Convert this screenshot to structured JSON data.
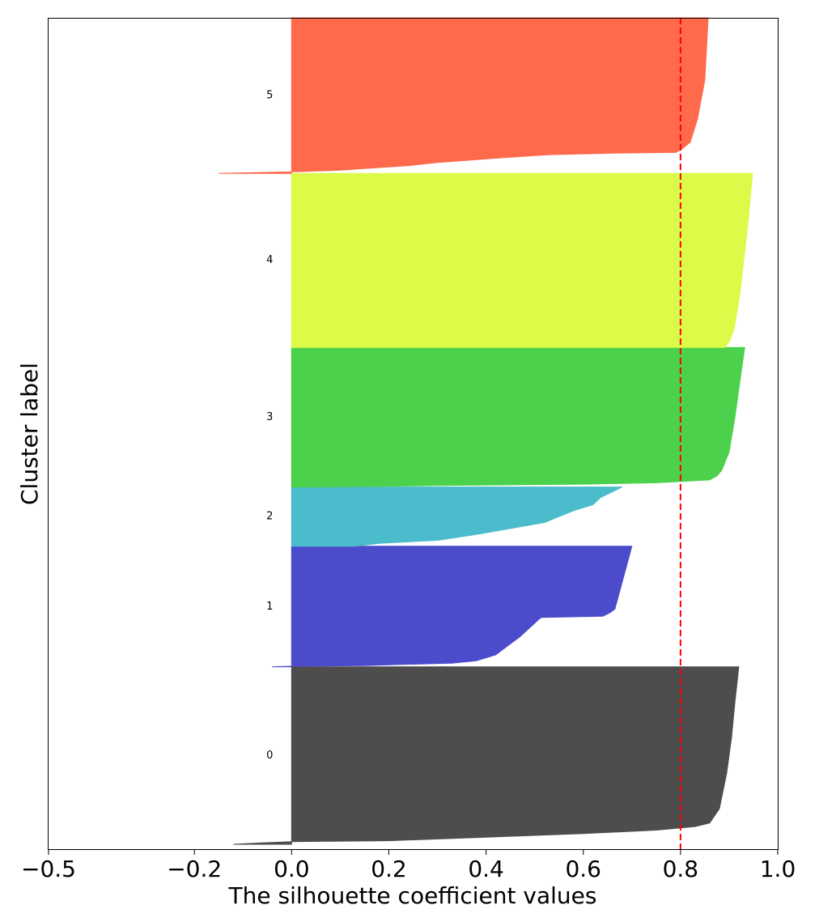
{
  "chart_data": {
    "type": "area",
    "xlabel": "The silhouette coefficient values",
    "ylabel": "Cluster label",
    "xlim": [
      -0.5,
      1.0
    ],
    "xticks": [
      -0.5,
      -0.2,
      0.0,
      0.2,
      0.4,
      0.6,
      0.8,
      1.0
    ],
    "xtick_labels": [
      "−0.5",
      "−0.2",
      "0.0",
      "0.2",
      "0.4",
      "0.6",
      "0.8",
      "1.0"
    ],
    "ylim": [
      0,
      1710
    ],
    "grid": false,
    "average_silhouette_score": 0.8,
    "reference_line": {
      "color": "#ff0000",
      "style": "dashed"
    },
    "clusters": [
      {
        "label": "0",
        "color": "#4d4d4d",
        "y_range": [
          10,
          375
        ],
        "profile": [
          [
            0,
            -0.12
          ],
          [
            0.008,
            -0.06
          ],
          [
            0.015,
            0.0
          ],
          [
            0.02,
            0.2
          ],
          [
            0.04,
            0.4
          ],
          [
            0.06,
            0.6
          ],
          [
            0.08,
            0.75
          ],
          [
            0.1,
            0.83
          ],
          [
            0.12,
            0.86
          ],
          [
            0.2,
            0.88
          ],
          [
            0.4,
            0.895
          ],
          [
            0.6,
            0.905
          ],
          [
            0.8,
            0.912
          ],
          [
            1.0,
            0.92
          ]
        ]
      },
      {
        "label": "1",
        "color": "#4b4bcc",
        "y_range": [
          375,
          623
        ],
        "profile": [
          [
            0,
            -0.04
          ],
          [
            0.005,
            0.0
          ],
          [
            0.01,
            0.15
          ],
          [
            0.02,
            0.23
          ],
          [
            0.03,
            0.33
          ],
          [
            0.05,
            0.38
          ],
          [
            0.1,
            0.42
          ],
          [
            0.25,
            0.47
          ],
          [
            0.4,
            0.51
          ],
          [
            0.41,
            0.515
          ],
          [
            0.42,
            0.64
          ],
          [
            0.45,
            0.655
          ],
          [
            0.48,
            0.665
          ],
          [
            1.0,
            0.7
          ]
        ]
      },
      {
        "label": "2",
        "color": "#4bbccc",
        "y_range": [
          623,
          745
        ],
        "profile": [
          [
            0,
            0.13
          ],
          [
            0.05,
            0.18
          ],
          [
            0.1,
            0.3
          ],
          [
            0.2,
            0.38
          ],
          [
            0.3,
            0.45
          ],
          [
            0.4,
            0.52
          ],
          [
            0.5,
            0.55
          ],
          [
            0.6,
            0.58
          ],
          [
            0.7,
            0.62
          ],
          [
            0.82,
            0.635
          ],
          [
            0.88,
            0.65
          ],
          [
            1.0,
            0.68
          ]
        ]
      },
      {
        "label": "3",
        "color": "#4bd14b",
        "y_range": [
          745,
          1032
        ],
        "profile": [
          [
            0,
            0.06
          ],
          [
            0.01,
            0.3
          ],
          [
            0.02,
            0.6
          ],
          [
            0.03,
            0.75
          ],
          [
            0.05,
            0.86
          ],
          [
            0.08,
            0.875
          ],
          [
            0.12,
            0.885
          ],
          [
            0.25,
            0.9
          ],
          [
            0.5,
            0.912
          ],
          [
            0.75,
            0.922
          ],
          [
            1.0,
            0.932
          ]
        ]
      },
      {
        "label": "4",
        "color": "#dcfb48",
        "y_range": [
          1032,
          1390
        ],
        "profile": [
          [
            0,
            0.89
          ],
          [
            0.03,
            0.9
          ],
          [
            0.1,
            0.91
          ],
          [
            0.3,
            0.922
          ],
          [
            0.5,
            0.93
          ],
          [
            0.75,
            0.94
          ],
          [
            1.0,
            0.948
          ]
        ]
      },
      {
        "label": "5",
        "color": "#ff6a4d",
        "y_range": [
          1390,
          1710
        ],
        "profile": [
          [
            0,
            -0.15
          ],
          [
            0.01,
            0.0
          ],
          [
            0.02,
            0.1
          ],
          [
            0.03,
            0.145
          ],
          [
            0.05,
            0.24
          ],
          [
            0.07,
            0.3
          ],
          [
            0.1,
            0.43
          ],
          [
            0.12,
            0.53
          ],
          [
            0.13,
            0.66
          ],
          [
            0.135,
            0.79
          ],
          [
            0.15,
            0.8
          ],
          [
            0.2,
            0.82
          ],
          [
            0.35,
            0.835
          ],
          [
            0.6,
            0.85
          ],
          [
            1.0,
            0.857
          ]
        ]
      }
    ]
  }
}
